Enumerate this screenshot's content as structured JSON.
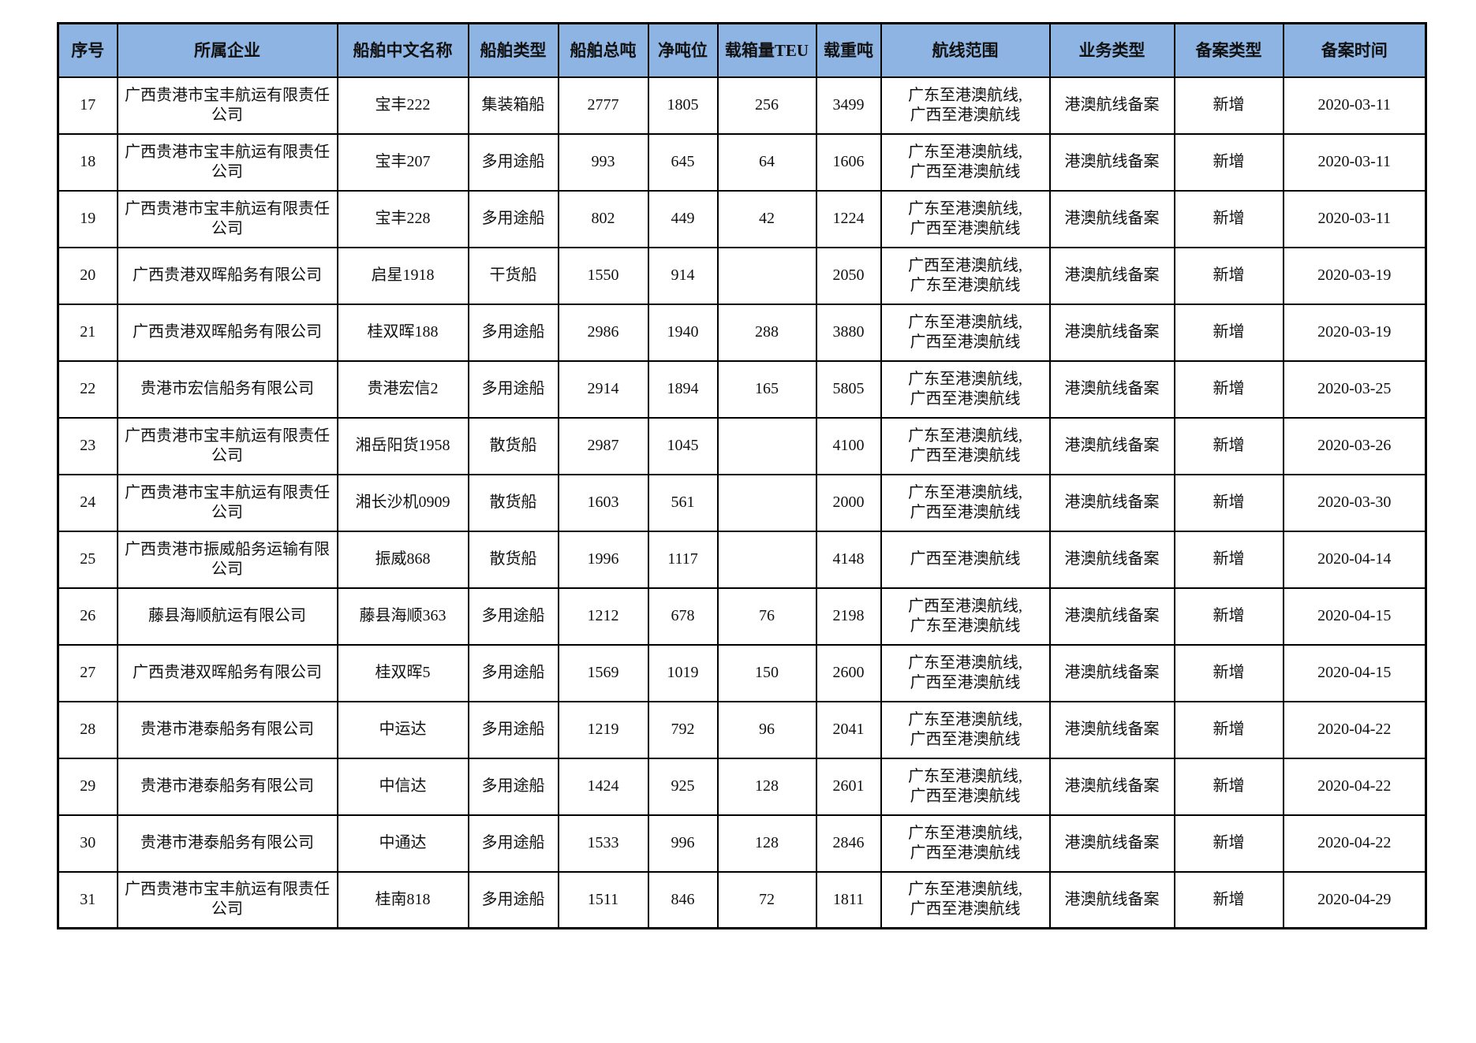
{
  "colors": {
    "header_bg": "#8DB4E2",
    "border": "#000000",
    "text": "#111111"
  },
  "table": {
    "columns": [
      {
        "key": "index",
        "label": "序号"
      },
      {
        "key": "company",
        "label": "所属企业"
      },
      {
        "key": "ship_name",
        "label": "船舶中文名称"
      },
      {
        "key": "ship_type",
        "label": "船舶类型"
      },
      {
        "key": "gross_tonnage",
        "label": "船舶总吨"
      },
      {
        "key": "net_tonnage",
        "label": "净吨位"
      },
      {
        "key": "teu",
        "label": "载箱量TEU"
      },
      {
        "key": "deadweight",
        "label": "载重吨"
      },
      {
        "key": "route",
        "label": "航线范围"
      },
      {
        "key": "business_type",
        "label": "业务类型"
      },
      {
        "key": "record_type",
        "label": "备案类型"
      },
      {
        "key": "record_date",
        "label": "备案时间"
      }
    ],
    "rows": [
      [
        "17",
        "广西贵港市宝丰航运有限责任公司",
        "宝丰222",
        "集装箱船",
        "2777",
        "1805",
        "256",
        "3499",
        "广东至港澳航线,\n广西至港澳航线",
        "港澳航线备案",
        "新增",
        "2020-03-11"
      ],
      [
        "18",
        "广西贵港市宝丰航运有限责任公司",
        "宝丰207",
        "多用途船",
        "993",
        "645",
        "64",
        "1606",
        "广东至港澳航线,\n广西至港澳航线",
        "港澳航线备案",
        "新增",
        "2020-03-11"
      ],
      [
        "19",
        "广西贵港市宝丰航运有限责任公司",
        "宝丰228",
        "多用途船",
        "802",
        "449",
        "42",
        "1224",
        "广东至港澳航线,\n广西至港澳航线",
        "港澳航线备案",
        "新增",
        "2020-03-11"
      ],
      [
        "20",
        "广西贵港双晖船务有限公司",
        "启星1918",
        "干货船",
        "1550",
        "914",
        "",
        "2050",
        "广西至港澳航线,\n广东至港澳航线",
        "港澳航线备案",
        "新增",
        "2020-03-19"
      ],
      [
        "21",
        "广西贵港双晖船务有限公司",
        "桂双晖188",
        "多用途船",
        "2986",
        "1940",
        "288",
        "3880",
        "广东至港澳航线,\n广西至港澳航线",
        "港澳航线备案",
        "新增",
        "2020-03-19"
      ],
      [
        "22",
        "贵港市宏信船务有限公司",
        "贵港宏信2",
        "多用途船",
        "2914",
        "1894",
        "165",
        "5805",
        "广东至港澳航线,\n广西至港澳航线",
        "港澳航线备案",
        "新增",
        "2020-03-25"
      ],
      [
        "23",
        "广西贵港市宝丰航运有限责任公司",
        "湘岳阳货1958",
        "散货船",
        "2987",
        "1045",
        "",
        "4100",
        "广东至港澳航线,\n广西至港澳航线",
        "港澳航线备案",
        "新增",
        "2020-03-26"
      ],
      [
        "24",
        "广西贵港市宝丰航运有限责任公司",
        "湘长沙机0909",
        "散货船",
        "1603",
        "561",
        "",
        "2000",
        "广东至港澳航线,\n广西至港澳航线",
        "港澳航线备案",
        "新增",
        "2020-03-30"
      ],
      [
        "25",
        "广西贵港市振威船务运输有限公司",
        "振威868",
        "散货船",
        "1996",
        "1117",
        "",
        "4148",
        "广西至港澳航线",
        "港澳航线备案",
        "新增",
        "2020-04-14"
      ],
      [
        "26",
        "藤县海顺航运有限公司",
        "藤县海顺363",
        "多用途船",
        "1212",
        "678",
        "76",
        "2198",
        "广西至港澳航线,\n广东至港澳航线",
        "港澳航线备案",
        "新增",
        "2020-04-15"
      ],
      [
        "27",
        "广西贵港双晖船务有限公司",
        "桂双晖5",
        "多用途船",
        "1569",
        "1019",
        "150",
        "2600",
        "广东至港澳航线,\n广西至港澳航线",
        "港澳航线备案",
        "新增",
        "2020-04-15"
      ],
      [
        "28",
        "贵港市港泰船务有限公司",
        "中运达",
        "多用途船",
        "1219",
        "792",
        "96",
        "2041",
        "广东至港澳航线,\n广西至港澳航线",
        "港澳航线备案",
        "新增",
        "2020-04-22"
      ],
      [
        "29",
        "贵港市港泰船务有限公司",
        "中信达",
        "多用途船",
        "1424",
        "925",
        "128",
        "2601",
        "广东至港澳航线,\n广西至港澳航线",
        "港澳航线备案",
        "新增",
        "2020-04-22"
      ],
      [
        "30",
        "贵港市港泰船务有限公司",
        "中通达",
        "多用途船",
        "1533",
        "996",
        "128",
        "2846",
        "广东至港澳航线,\n广西至港澳航线",
        "港澳航线备案",
        "新增",
        "2020-04-22"
      ],
      [
        "31",
        "广西贵港市宝丰航运有限责任公司",
        "桂南818",
        "多用途船",
        "1511",
        "846",
        "72",
        "1811",
        "广东至港澳航线,\n广西至港澳航线",
        "港澳航线备案",
        "新增",
        "2020-04-29"
      ]
    ]
  }
}
